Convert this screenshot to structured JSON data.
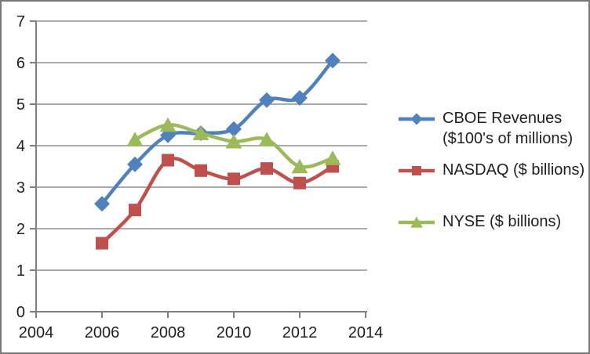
{
  "chart_data": {
    "type": "line",
    "smoothed": true,
    "title": "",
    "xlabel": "",
    "ylabel": "",
    "x": [
      2006,
      2007,
      2008,
      2009,
      2010,
      2011,
      2012,
      2013
    ],
    "series": [
      {
        "name": "CBOE Revenues ($100's of millions)",
        "legend_lines": [
          "CBOE Revenues",
          "($100's of millions)"
        ],
        "color": "#4F81BD",
        "marker": "diamond",
        "values": [
          2.6,
          3.55,
          4.25,
          4.3,
          4.4,
          5.1,
          5.15,
          6.05
        ]
      },
      {
        "name": "NASDAQ ($ billions)",
        "legend_lines": [
          "NASDAQ ($ billions)"
        ],
        "color": "#C0504D",
        "marker": "square",
        "values": [
          1.65,
          2.45,
          3.65,
          3.4,
          3.2,
          3.45,
          3.1,
          3.5
        ]
      },
      {
        "name": "NYSE ($ billions)",
        "legend_lines": [
          "NYSE ($ billions)"
        ],
        "color": "#9BBB59",
        "marker": "triangle",
        "values": [
          null,
          4.15,
          4.5,
          4.3,
          4.1,
          4.15,
          3.5,
          3.7
        ]
      }
    ],
    "xlim": [
      2004,
      2014
    ],
    "ylim": [
      0,
      7
    ],
    "x_ticks": [
      "2004",
      "2006",
      "2008",
      "2010",
      "2012",
      "2014"
    ],
    "y_ticks": [
      "0",
      "1",
      "2",
      "3",
      "4",
      "5",
      "6",
      "7"
    ],
    "grid": true,
    "legend_position": "right",
    "colors": {
      "axis": "#7F7F7F",
      "gridline": "#8F8F8F",
      "tick_text": "#1F1F1F",
      "background": "#FFFFFF",
      "frame_border": "#787878"
    }
  }
}
